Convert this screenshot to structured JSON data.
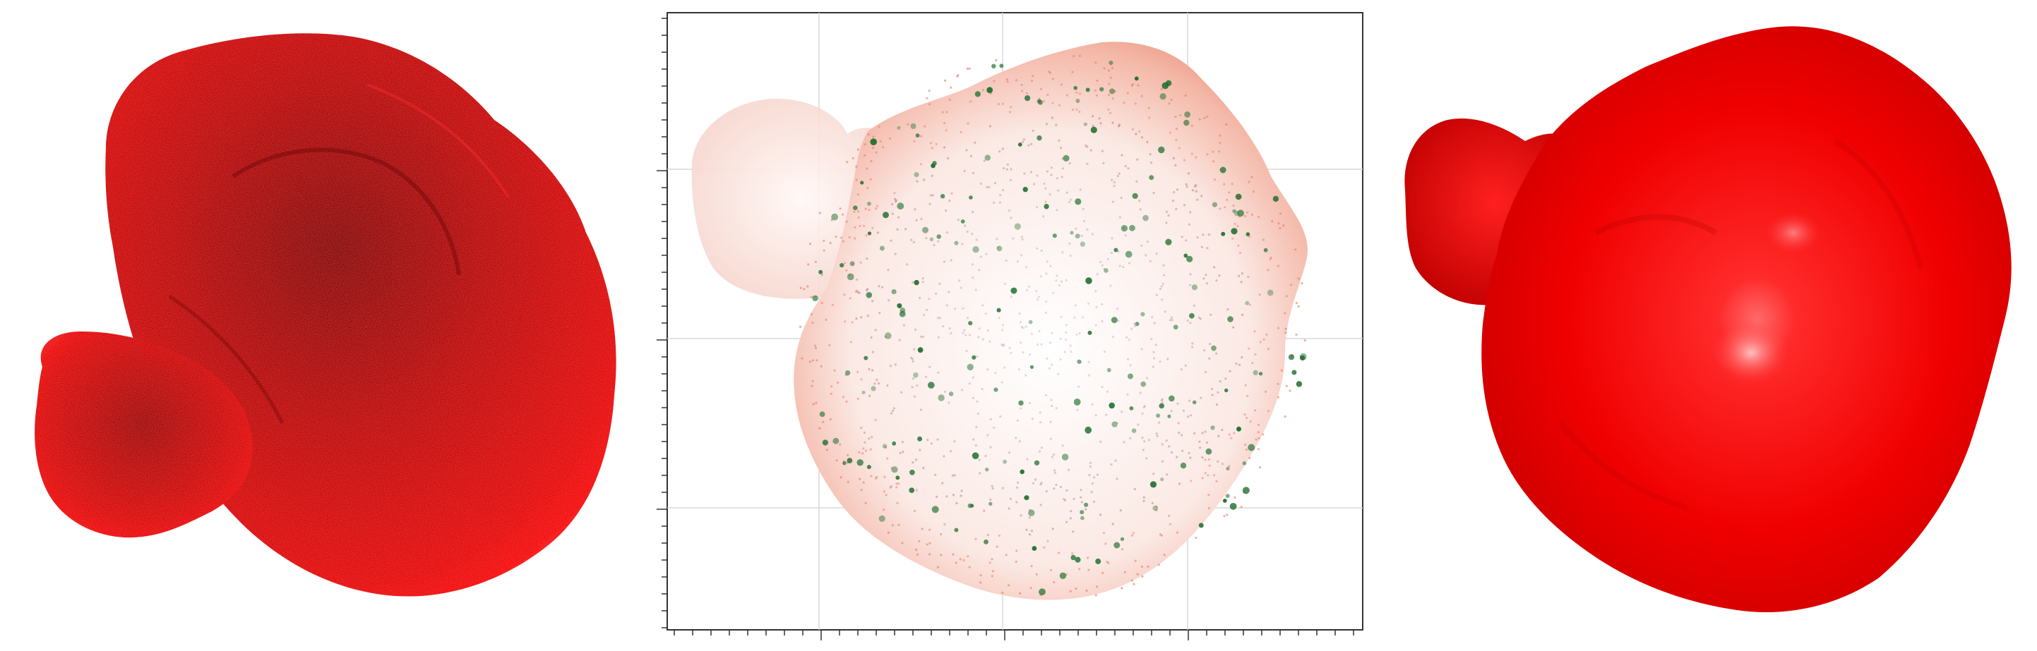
{
  "figure": {
    "panels": [
      {
        "kind": "point-cloud-render",
        "color": "#e00000",
        "icon": "blob-render"
      },
      {
        "kind": "scatter-projection",
        "axis_frame": true,
        "grid": true,
        "point_colors": {
          "outer": "#e8806a",
          "inner": "#b0707a",
          "highlight": "#1e6e2e"
        }
      },
      {
        "kind": "surface-mesh-render",
        "color": "#ff0a0a",
        "icon": "blob-surface"
      }
    ]
  }
}
